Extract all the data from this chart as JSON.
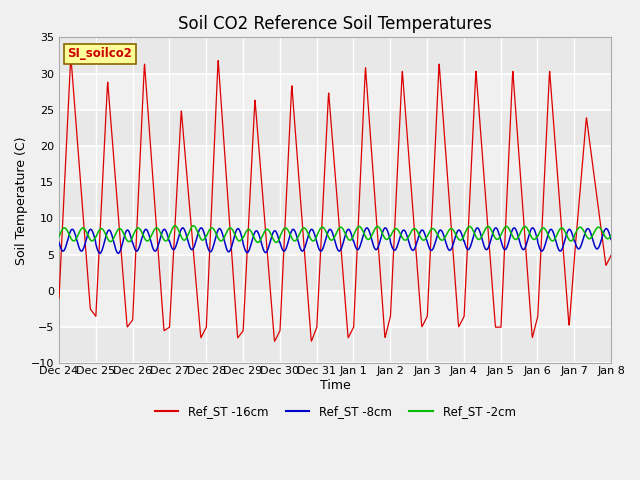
{
  "title": "Soil CO2 Reference Soil Temperatures",
  "xlabel": "Time",
  "ylabel": "Soil Temperature (C)",
  "ylim": [
    -10,
    35
  ],
  "yticks": [
    -10,
    -5,
    0,
    5,
    10,
    15,
    20,
    25,
    30,
    35
  ],
  "background_color": "#f0f0f0",
  "plot_bg_color": "#f0f0f0",
  "band_colors": [
    "#e0e0e0",
    "#f0f0f0"
  ],
  "grid_color": "#ffffff",
  "label_box_text": "SI_soilco2",
  "label_box_bg": "#ffff99",
  "label_box_border": "#886600",
  "legend": [
    {
      "label": "Ref_ST -16cm",
      "color": "#dd0000"
    },
    {
      "label": "Ref_ST -8cm",
      "color": "#0000cc"
    },
    {
      "label": "Ref_ST -2cm",
      "color": "#00bb00"
    }
  ],
  "x_tick_labels": [
    "Dec 24",
    "Dec 25",
    "Dec 26",
    "Dec 27",
    "Dec 28",
    "Dec 29",
    "Dec 30",
    "Dec 31",
    "Jan 1",
    "Jan 2",
    "Jan 3",
    "Jan 4",
    "Jan 5",
    "Jan 6",
    "Jan 7",
    "Jan 8"
  ],
  "title_fontsize": 12,
  "axis_label_fontsize": 9,
  "tick_fontsize": 8,
  "red_peaks": [
    32.5,
    29.0,
    31.5,
    25.0,
    32.0,
    26.5,
    28.5,
    27.5,
    31.0,
    30.5,
    31.5,
    30.5,
    30.5,
    30.5,
    24.0,
    5.0
  ],
  "red_troughs": [
    -2.5,
    -5.0,
    -5.5,
    -6.5,
    -6.5,
    -7.0,
    -7.0,
    -6.5,
    -6.5,
    -5.0,
    -5.0,
    -5.0,
    -6.5,
    -5.0,
    3.5,
    3.5
  ],
  "red_peak_pos": [
    0.35,
    0.35,
    0.35,
    0.35,
    0.35,
    0.35,
    0.35,
    0.35,
    0.35,
    0.35,
    0.35,
    0.35,
    0.35,
    0.35,
    0.35,
    0.35
  ],
  "red_start_vals": [
    -2.5,
    -3.5,
    -2.0,
    -2.5,
    -3.5,
    -5.0,
    -4.5,
    -2.0,
    -1.0,
    -1.5,
    -1.5,
    -2.0,
    -2.0,
    -2.0,
    5.0,
    3.5
  ]
}
